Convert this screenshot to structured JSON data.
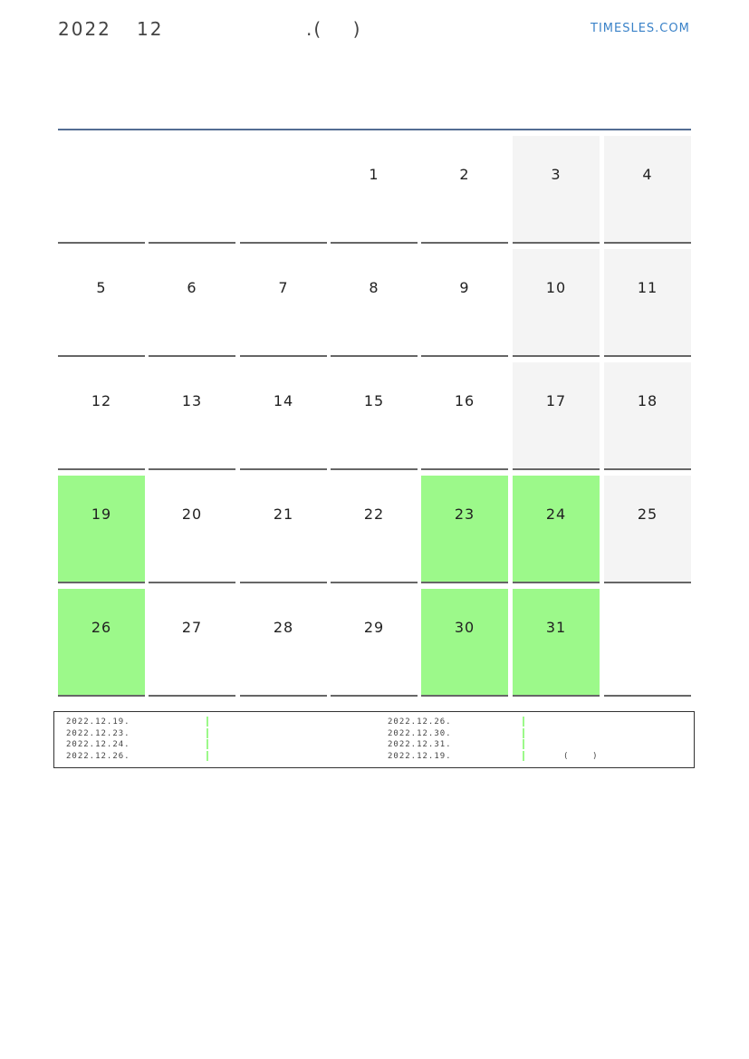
{
  "header": {
    "year": "2022",
    "month": "12",
    "title_fragment": ".(    )",
    "brand": "TIMESLES.COM"
  },
  "colors": {
    "highlight": "#9cf98a",
    "weekend": "#f4f4f4",
    "rule": "#546d93",
    "brand": "#3a82c8"
  },
  "weeks": [
    [
      {
        "d": ""
      },
      {
        "d": ""
      },
      {
        "d": ""
      },
      {
        "d": "1"
      },
      {
        "d": "2"
      },
      {
        "d": "3",
        "t": "weekend"
      },
      {
        "d": "4",
        "t": "weekend"
      }
    ],
    [
      {
        "d": "5"
      },
      {
        "d": "6"
      },
      {
        "d": "7"
      },
      {
        "d": "8"
      },
      {
        "d": "9"
      },
      {
        "d": "10",
        "t": "weekend"
      },
      {
        "d": "11",
        "t": "weekend"
      }
    ],
    [
      {
        "d": "12"
      },
      {
        "d": "13"
      },
      {
        "d": "14"
      },
      {
        "d": "15"
      },
      {
        "d": "16"
      },
      {
        "d": "17",
        "t": "weekend"
      },
      {
        "d": "18",
        "t": "weekend"
      }
    ],
    [
      {
        "d": "19",
        "t": "hl"
      },
      {
        "d": "20"
      },
      {
        "d": "21"
      },
      {
        "d": "22"
      },
      {
        "d": "23",
        "t": "hl"
      },
      {
        "d": "24",
        "t": "hl"
      },
      {
        "d": "25",
        "t": "weekend"
      }
    ],
    [
      {
        "d": "26",
        "t": "hl"
      },
      {
        "d": "27"
      },
      {
        "d": "28"
      },
      {
        "d": "29"
      },
      {
        "d": "30",
        "t": "hl"
      },
      {
        "d": "31",
        "t": "hl"
      },
      {
        "d": ""
      }
    ]
  ],
  "legend": {
    "left": [
      "2022.12.19.",
      "2022.12.23.",
      "2022.12.24.",
      "2022.12.26."
    ],
    "right": [
      "2022.12.26.",
      "2022.12.30.",
      "2022.12.31.",
      "2022.12.19."
    ],
    "note": "(    )"
  }
}
